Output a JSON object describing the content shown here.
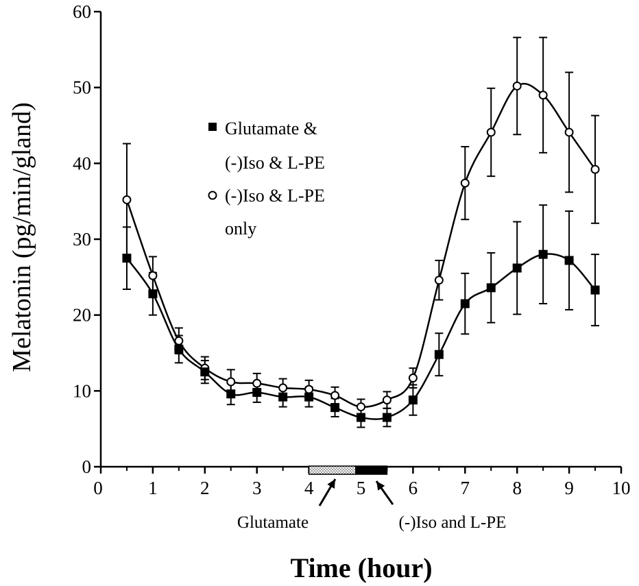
{
  "chart_data": {
    "type": "line",
    "title": "",
    "xlabel": "Time (hour)",
    "ylabel": "Melatonin (pg/min/gland)",
    "xlim": [
      0,
      10
    ],
    "ylim": [
      0,
      60
    ],
    "x_ticks": [
      "0",
      "1",
      "2",
      "3",
      "4",
      "5",
      "6",
      "7",
      "8",
      "9",
      "10"
    ],
    "y_ticks": [
      "0",
      "10",
      "20",
      "30",
      "40",
      "50",
      "60"
    ],
    "grid": false,
    "legend_position": "upper-left",
    "x": [
      0.5,
      1.0,
      1.5,
      2.0,
      2.5,
      3.0,
      3.5,
      4.0,
      4.5,
      5.0,
      5.5,
      6.0,
      6.5,
      7.0,
      7.5,
      8.0,
      8.5,
      9.0,
      9.5
    ],
    "series": [
      {
        "name": "Glutamate & (-)Iso & L-PE",
        "legend_lines": [
          "Glutamate &",
          "(-)Iso & L-PE"
        ],
        "marker": "filled-square",
        "values": [
          27.5,
          22.8,
          15.5,
          12.5,
          9.6,
          9.8,
          9.2,
          9.2,
          7.8,
          6.5,
          6.5,
          8.8,
          14.8,
          21.5,
          23.6,
          26.2,
          28.0,
          27.2,
          23.3
        ],
        "errors": [
          4.1,
          2.8,
          1.8,
          1.5,
          1.4,
          1.3,
          1.3,
          1.3,
          1.2,
          1.3,
          1.2,
          2.0,
          2.8,
          4.0,
          4.6,
          6.1,
          6.5,
          6.5,
          4.7
        ]
      },
      {
        "name": "(-)Iso & L-PE only",
        "legend_lines": [
          "(-)Iso & L-PE",
          "only"
        ],
        "marker": "open-circle",
        "values": [
          35.2,
          25.2,
          16.6,
          13.0,
          11.2,
          11.0,
          10.4,
          10.2,
          9.4,
          7.9,
          8.8,
          11.7,
          24.6,
          37.4,
          44.1,
          50.2,
          49.0,
          44.1,
          39.2
        ],
        "errors": [
          7.4,
          2.5,
          1.7,
          1.5,
          1.6,
          1.3,
          1.2,
          1.2,
          1.1,
          1.0,
          1.1,
          1.3,
          2.6,
          4.8,
          5.8,
          6.4,
          7.6,
          7.9,
          7.1
        ]
      }
    ],
    "treatment_bars": [
      {
        "label": "Glutamate",
        "start": 4.0,
        "end": 4.9,
        "fill": "stippled"
      },
      {
        "label": "(-)Iso and L-PE",
        "start": 4.9,
        "end": 5.5,
        "fill": "solid"
      }
    ]
  }
}
